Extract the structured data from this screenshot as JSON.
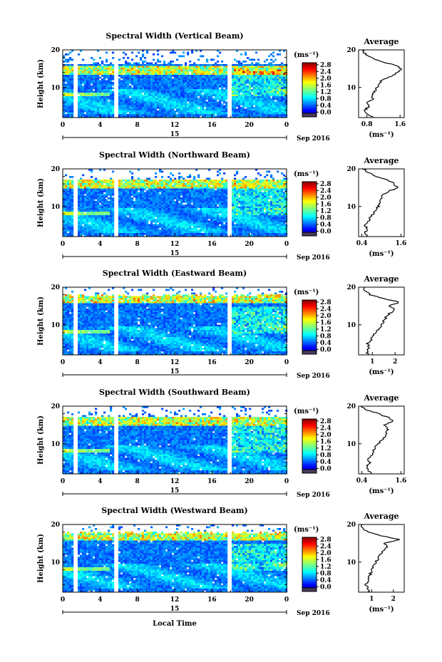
{
  "figure": {
    "xlabel": "Local Time",
    "date_label": "Sep 2016",
    "day_label": "15",
    "ylabel": "Height (km)",
    "colorbar_unit": "(ms⁻¹)",
    "profile_title": "Average",
    "profile_xlabel": "(ms⁻¹)"
  },
  "chart_data": [
    {
      "type": "heatmap",
      "title": "Spectral Width (Vertical Beam)",
      "x_ticks": [
        "0",
        "4",
        "8",
        "12",
        "16",
        "20",
        "0"
      ],
      "y_ticks": [
        "20",
        "10"
      ],
      "xlim": [
        0,
        24
      ],
      "ylim": [
        2,
        20
      ],
      "colorbar_ticks": [
        "2.8",
        "2.4",
        "2.0",
        "1.6",
        "1.2",
        "0.8",
        "0.4",
        "0.0"
      ],
      "colorbar_range": [
        0,
        3.0
      ],
      "data_gaps_hours": [
        [
          1.0,
          1.4
        ],
        [
          5.5,
          5.9
        ],
        [
          17.6,
          18.0
        ]
      ],
      "enhanced_layer_km": [
        14,
        16
      ],
      "average_profile": {
        "xlim": [
          0.6,
          1.7
        ],
        "xticks": [
          "0.8",
          "1.6"
        ],
        "height_km": [
          2,
          3,
          4,
          5,
          6,
          7,
          8,
          9,
          10,
          11,
          12,
          13,
          14,
          15,
          16,
          17,
          18,
          19,
          20
        ],
        "value": [
          0.95,
          0.8,
          0.75,
          0.85,
          0.8,
          0.95,
          0.9,
          1.0,
          1.05,
          1.1,
          1.15,
          1.4,
          1.55,
          1.65,
          1.45,
          1.1,
          0.9,
          0.75,
          0.7
        ]
      }
    },
    {
      "type": "heatmap",
      "title": "Spectral Width (Northward Beam)",
      "x_ticks": [
        "0",
        "4",
        "8",
        "12",
        "16",
        "20",
        "0"
      ],
      "y_ticks": [
        "20",
        "10"
      ],
      "xlim": [
        0,
        24
      ],
      "ylim": [
        2,
        20
      ],
      "colorbar_ticks": [
        "2.8",
        "2.4",
        "2.0",
        "1.6",
        "1.2",
        "0.8",
        "0.4",
        "0.0"
      ],
      "colorbar_range": [
        0,
        3.0
      ],
      "data_gaps_hours": [
        [
          1.0,
          1.4
        ],
        [
          5.5,
          5.9
        ],
        [
          17.6,
          18.0
        ]
      ],
      "enhanced_layer_km": [
        15,
        17
      ],
      "average_profile": {
        "xlim": [
          0.3,
          1.7
        ],
        "xticks": [
          "0.4",
          "1.6"
        ],
        "height_km": [
          2,
          3,
          4,
          5,
          6,
          7,
          8,
          9,
          10,
          11,
          12,
          13,
          14,
          15,
          16,
          17,
          18,
          19,
          20
        ],
        "value": [
          0.55,
          0.5,
          0.55,
          0.5,
          0.6,
          0.65,
          0.75,
          0.8,
          0.9,
          0.95,
          1.0,
          1.05,
          1.2,
          1.5,
          1.4,
          1.2,
          0.85,
          0.6,
          0.45
        ]
      }
    },
    {
      "type": "heatmap",
      "title": "Spectral Width (Eastward Beam)",
      "x_ticks": [
        "0",
        "4",
        "8",
        "12",
        "16",
        "20",
        "0"
      ],
      "y_ticks": [
        "20",
        "10"
      ],
      "xlim": [
        0,
        24
      ],
      "ylim": [
        2,
        20
      ],
      "colorbar_ticks": [
        "2.8",
        "2.4",
        "2.0",
        "1.6",
        "1.2",
        "0.8",
        "0.4",
        "0.0"
      ],
      "colorbar_range": [
        0,
        3.0
      ],
      "data_gaps_hours": [
        [
          1.0,
          1.4
        ],
        [
          5.5,
          5.9
        ],
        [
          17.6,
          18.0
        ]
      ],
      "enhanced_layer_km": [
        16,
        18
      ],
      "average_profile": {
        "xlim": [
          0.4,
          2.4
        ],
        "xticks": [
          "1",
          "2"
        ],
        "height_km": [
          2,
          3,
          4,
          5,
          6,
          7,
          8,
          9,
          10,
          11,
          12,
          13,
          14,
          15,
          16,
          17,
          18,
          19,
          20
        ],
        "value": [
          0.8,
          0.75,
          0.85,
          0.8,
          0.95,
          1.05,
          1.15,
          1.3,
          1.4,
          1.5,
          1.6,
          1.75,
          2.0,
          1.7,
          2.2,
          1.5,
          0.9,
          0.7,
          0.6
        ]
      }
    },
    {
      "type": "heatmap",
      "title": "Spectral Width (Southward Beam)",
      "x_ticks": [
        "0",
        "4",
        "8",
        "12",
        "16",
        "20",
        "0"
      ],
      "y_ticks": [
        "20",
        "10"
      ],
      "xlim": [
        0,
        24
      ],
      "ylim": [
        2,
        20
      ],
      "colorbar_ticks": [
        "2.8",
        "2.4",
        "2.0",
        "1.6",
        "1.2",
        "0.8",
        "0.4",
        "0.0"
      ],
      "colorbar_range": [
        0,
        3.0
      ],
      "data_gaps_hours": [
        [
          1.0,
          1.4
        ],
        [
          5.5,
          5.9
        ],
        [
          17.6,
          18.0
        ]
      ],
      "enhanced_layer_km": [
        15,
        17
      ],
      "average_profile": {
        "xlim": [
          0.3,
          1.7
        ],
        "xticks": [
          "0.4",
          "1.6"
        ],
        "height_km": [
          2,
          3,
          4,
          5,
          6,
          7,
          8,
          9,
          10,
          11,
          12,
          13,
          14,
          15,
          16,
          17,
          18,
          19,
          20
        ],
        "value": [
          0.7,
          0.6,
          0.55,
          0.65,
          0.6,
          0.7,
          0.75,
          0.8,
          0.9,
          1.0,
          1.1,
          1.15,
          1.2,
          1.1,
          1.35,
          1.2,
          0.9,
          0.55,
          0.4
        ]
      }
    },
    {
      "type": "heatmap",
      "title": "Spectral Width (Westward Beam)",
      "x_ticks": [
        "0",
        "4",
        "8",
        "12",
        "16",
        "20",
        "0"
      ],
      "y_ticks": [
        "20",
        "10"
      ],
      "xlim": [
        0,
        24
      ],
      "ylim": [
        2,
        20
      ],
      "colorbar_ticks": [
        "2.8",
        "2.4",
        "2.0",
        "1.6",
        "1.2",
        "0.8",
        "0.4",
        "0.0"
      ],
      "colorbar_range": [
        0,
        3.0
      ],
      "data_gaps_hours": [
        [
          1.0,
          1.4
        ],
        [
          5.5,
          5.9
        ],
        [
          17.6,
          18.0
        ]
      ],
      "enhanced_layer_km": [
        16,
        18
      ],
      "average_profile": {
        "xlim": [
          0.4,
          2.5
        ],
        "xticks": [
          "1",
          "2"
        ],
        "height_km": [
          2,
          3,
          4,
          5,
          6,
          7,
          8,
          9,
          10,
          11,
          12,
          13,
          14,
          15,
          16,
          17,
          18,
          19,
          20
        ],
        "value": [
          0.85,
          0.8,
          0.75,
          0.85,
          0.9,
          0.95,
          1.0,
          1.1,
          1.2,
          1.3,
          1.4,
          1.5,
          1.7,
          1.6,
          2.3,
          1.4,
          0.8,
          0.6,
          0.55
        ]
      }
    }
  ]
}
